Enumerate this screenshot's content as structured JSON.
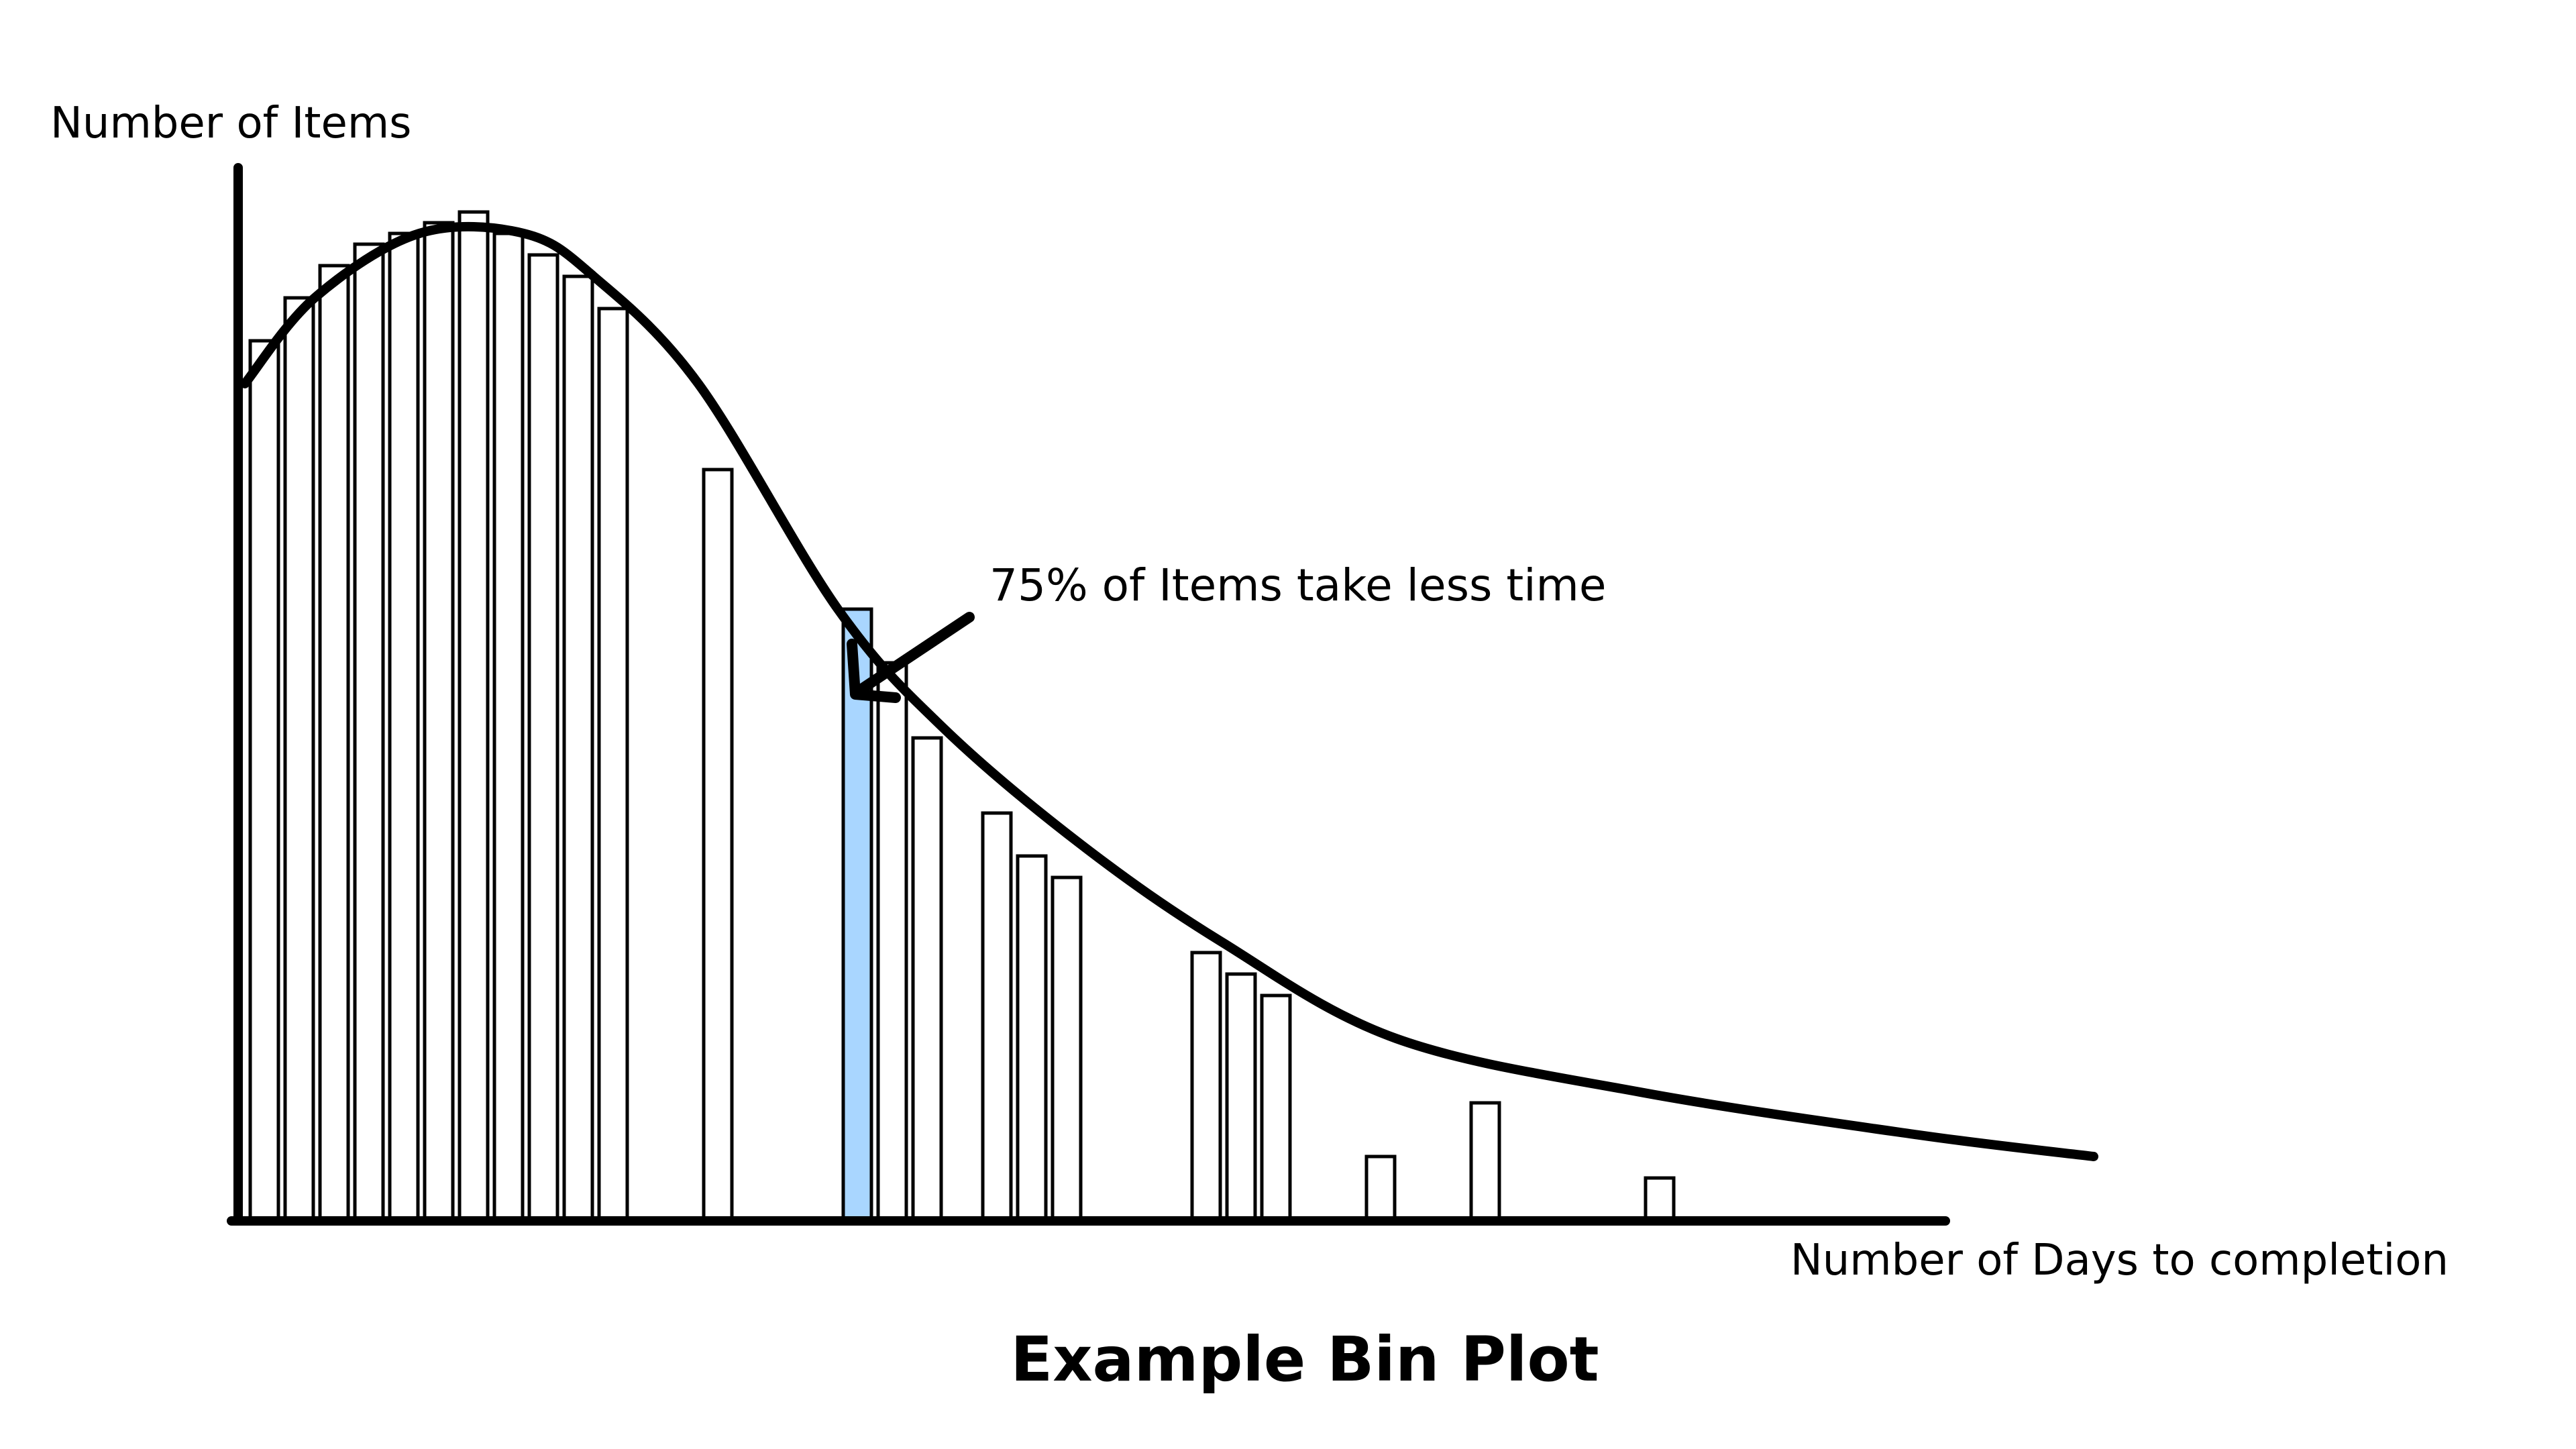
{
  "chart_data": {
    "type": "bar",
    "title": "Example Bin Plot",
    "xlabel": "Number of Days to completion",
    "ylabel": "Number of Items",
    "annotation": "75% of Items take less time",
    "highlight_color": "#a9d6ff",
    "bar_color": "#ffffff",
    "ylim": [
      0,
      100
    ],
    "xlim": [
      0,
      64
    ],
    "grid": false,
    "legend": "none",
    "bars": [
      {
        "x": 0,
        "value": 82
      },
      {
        "x": 1,
        "value": 86
      },
      {
        "x": 2,
        "value": 89
      },
      {
        "x": 3,
        "value": 91
      },
      {
        "x": 4,
        "value": 92
      },
      {
        "x": 5,
        "value": 93
      },
      {
        "x": 6,
        "value": 94
      },
      {
        "x": 7,
        "value": 92
      },
      {
        "x": 8,
        "value": 90
      },
      {
        "x": 9,
        "value": 88
      },
      {
        "x": 10,
        "value": 85
      },
      {
        "x": 13,
        "value": 70
      },
      {
        "x": 17,
        "value": 57,
        "highlight": true
      },
      {
        "x": 18,
        "value": 52
      },
      {
        "x": 19,
        "value": 45
      },
      {
        "x": 21,
        "value": 38
      },
      {
        "x": 22,
        "value": 34
      },
      {
        "x": 23,
        "value": 32
      },
      {
        "x": 27,
        "value": 25
      },
      {
        "x": 28,
        "value": 23
      },
      {
        "x": 29,
        "value": 21
      },
      {
        "x": 32,
        "value": 6
      },
      {
        "x": 35,
        "value": 11
      },
      {
        "x": 40,
        "value": 4
      }
    ],
    "curve": [
      [
        0,
        78
      ],
      [
        2,
        86
      ],
      [
        5,
        92
      ],
      [
        8,
        92
      ],
      [
        10,
        88
      ],
      [
        13,
        78
      ],
      [
        17,
        57
      ],
      [
        20,
        46
      ],
      [
        24,
        35
      ],
      [
        28,
        26
      ],
      [
        33,
        17
      ],
      [
        40,
        12
      ],
      [
        48,
        8
      ],
      [
        53,
        6
      ]
    ]
  }
}
